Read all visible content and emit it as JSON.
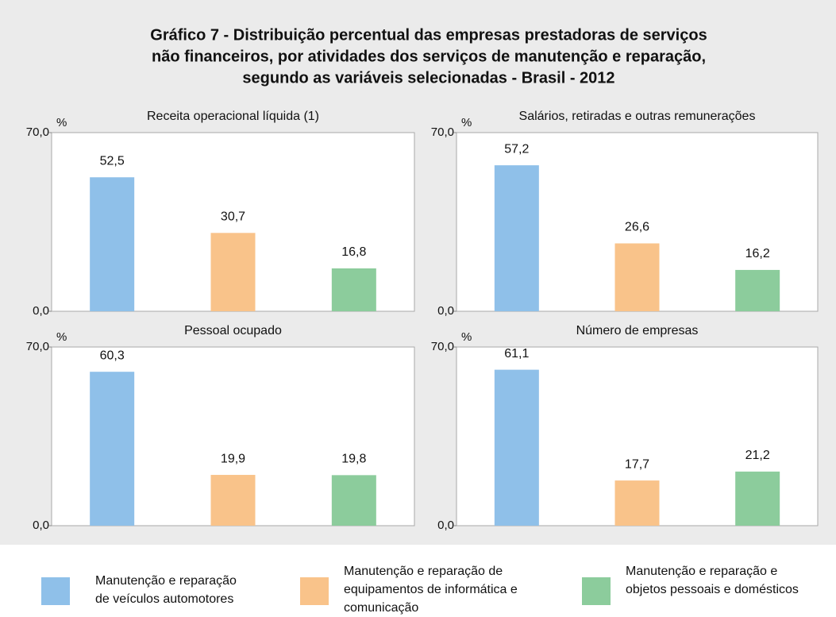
{
  "title": [
    "Gráfico 7 - Distribuição percentual das empresas prestadoras de serviços",
    "não financeiros, por atividades dos serviços de manutenção e reparação,",
    "segundo as variáveis selecionadas - Brasil - 2012"
  ],
  "legend": {
    "categories": [
      "Manutenção e reparação de veículos automotores",
      "Manutenção e reparação de equipamentos de informática e comunicação",
      "Manutenção e reparação e objetos pessoais e domésticos"
    ],
    "colors": [
      "#8fc0e9",
      "#f9c38a",
      "#8ccc9c"
    ]
  },
  "chart_data": [
    {
      "type": "bar",
      "title": "Receita operacional líquida (1)",
      "y_label": "%",
      "ylim": [
        0,
        70
      ],
      "yticks": [
        {
          "value": 0,
          "label": "0,0"
        },
        {
          "value": 70,
          "label": "70,0"
        }
      ],
      "values": [
        52.5,
        30.7,
        16.8
      ],
      "value_labels": [
        "52,5",
        "30,7",
        "16,8"
      ]
    },
    {
      "type": "bar",
      "title": "Salários, retiradas e outras remunerações",
      "y_label": "%",
      "ylim": [
        0,
        70
      ],
      "yticks": [
        {
          "value": 0,
          "label": "0,0"
        },
        {
          "value": 70,
          "label": "70,0"
        }
      ],
      "values": [
        57.2,
        26.6,
        16.2
      ],
      "value_labels": [
        "57,2",
        "26,6",
        "16,2"
      ]
    },
    {
      "type": "bar",
      "title": "Pessoal ocupado",
      "y_label": "%",
      "ylim": [
        0,
        70
      ],
      "yticks": [
        {
          "value": 0,
          "label": "0,0"
        },
        {
          "value": 70,
          "label": "70,0"
        }
      ],
      "values": [
        60.3,
        19.9,
        19.8
      ],
      "value_labels": [
        "60,3",
        "19,9",
        "19,8"
      ]
    },
    {
      "type": "bar",
      "title": "Número de empresas",
      "y_label": "%",
      "ylim": [
        0,
        70
      ],
      "yticks": [
        {
          "value": 0,
          "label": "0,0"
        },
        {
          "value": 70,
          "label": "70,0"
        }
      ],
      "values": [
        61.1,
        17.7,
        21.2
      ],
      "value_labels": [
        "61,1",
        "17,7",
        "21,2"
      ]
    }
  ]
}
